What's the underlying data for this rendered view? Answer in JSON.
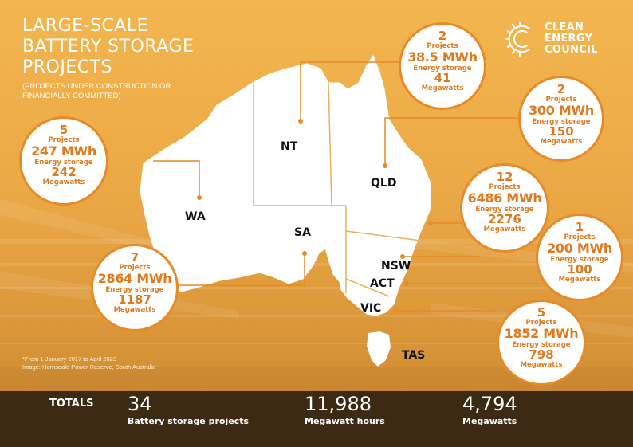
{
  "title_lines": [
    "LARGE-SCALE",
    "BATTERY STORAGE",
    "PROJECTS"
  ],
  "subtitle_lines": [
    "(PROJECTS UNDER CONSTRUCTION OR",
    "FINANCIALLY COMMITTED)"
  ],
  "logo": {
    "lines": [
      "CLEAN",
      "ENERGY",
      "COUNCIL"
    ]
  },
  "states": {
    "wa": "WA",
    "nt": "NT",
    "qld": "QLD",
    "sa": "SA",
    "nsw": "NSW",
    "act": "ACT",
    "vic": "VIC",
    "tas": "TAS"
  },
  "labels": {
    "projects": "Projects",
    "storage": "Energy storage",
    "megawatts": "Megawatts"
  },
  "regions": {
    "nt": {
      "projects": "2",
      "storage": "38.5 MWh",
      "megawatts": "41"
    },
    "qld": {
      "projects": "2",
      "storage": "300 MWh",
      "megawatts": "150"
    },
    "wa": {
      "projects": "5",
      "storage": "247 MWh",
      "megawatts": "242"
    },
    "nsw": {
      "projects": "12",
      "storage": "6486 MWh",
      "megawatts": "2276"
    },
    "act": {
      "projects": "1",
      "storage": "200 MWh",
      "megawatts": "100"
    },
    "sa": {
      "projects": "7",
      "storage": "2864 MWh",
      "megawatts": "1187"
    },
    "vic": {
      "projects": "5",
      "storage": "1852 MWh",
      "megawatts": "798"
    }
  },
  "footnote_lines": [
    "*From 1 January 2017 to April 2023",
    "Image: Hornsdale Power Reserve, South Australia"
  ],
  "totals": {
    "label": "TOTALS",
    "projects": {
      "value": "34",
      "caption": "Battery storage projects"
    },
    "mwh": {
      "value": "11,988",
      "caption": "Megawatt hours"
    },
    "mw": {
      "value": "4,794",
      "caption": "Megawatts"
    }
  },
  "colors": {
    "accent": "#e8892a",
    "background": "#f0b24c",
    "totals_bar": "#3d2a14"
  }
}
